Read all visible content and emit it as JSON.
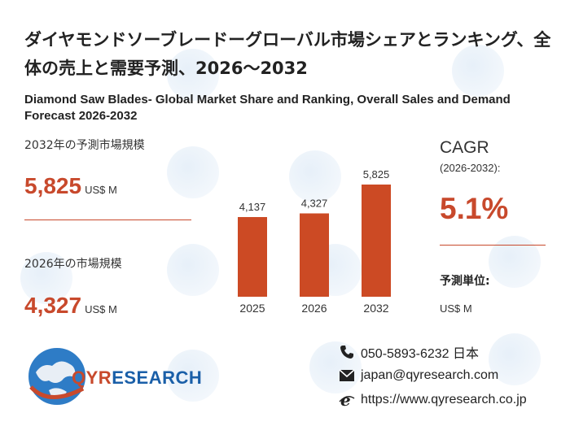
{
  "header": {
    "title_ja": "ダイヤモンドソーブレードーグローバル市場シェアとランキング、全体の売上と需要予測、2026～2032",
    "title_en": "Diamond Saw Blades- Global Market Share and Ranking, Overall Sales and Demand Forecast 2026-2032"
  },
  "stats": {
    "market_2032_label": "2032年の予測市場規模",
    "market_2032_value": "5,825",
    "market_2032_unit": "US$ M",
    "market_2026_label": "2026年の市場規模",
    "market_2026_value": "4,327",
    "market_2026_unit": "US$ M"
  },
  "cagr": {
    "label": "CAGR",
    "period": "(2026-2032):",
    "value": "5.1%"
  },
  "forecast_unit": {
    "label": "予測単位:",
    "value": "US$ M"
  },
  "chart_data": {
    "type": "bar",
    "categories": [
      "2025",
      "2026",
      "2032"
    ],
    "values": [
      4137,
      4327,
      5825
    ],
    "value_labels": [
      "4,137",
      "4,327",
      "5,825"
    ],
    "bar_color": "#cc4a24",
    "ylim": [
      0,
      6000
    ],
    "grid": false,
    "title": "",
    "xlabel": "",
    "ylabel": ""
  },
  "brand": {
    "logo_text_q": "QYR",
    "logo_text_rest": "ESEARCH",
    "primary_color": "#1a5fa8",
    "accent_color": "#c8492c"
  },
  "contact": {
    "phone": "050-5893-6232 日本",
    "email": "japan@qyresearch.com",
    "website": "https://www.qyresearch.co.jp",
    "phone_icon": "phone-icon",
    "email_icon": "envelope-icon",
    "web_icon": "browser-e-icon"
  }
}
